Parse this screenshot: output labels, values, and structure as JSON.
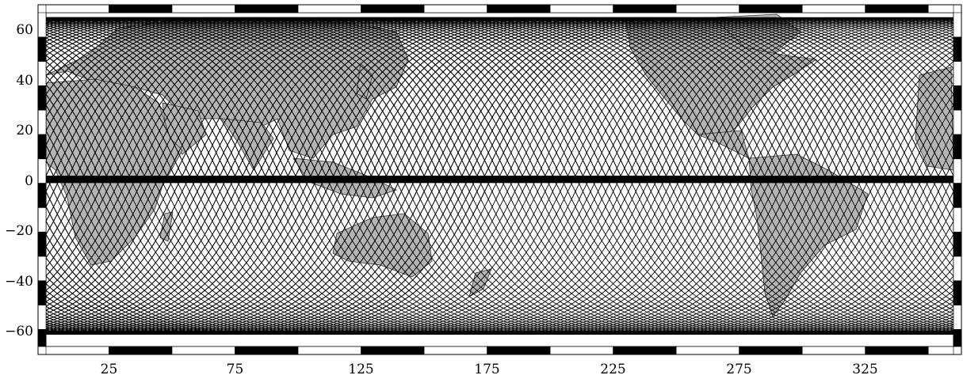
{
  "map": {
    "type": "satellite-ground-track-coverage",
    "projection": "equirectangular",
    "x_axis": {
      "range": [
        0,
        360
      ],
      "tick_labels": [
        "25",
        "75",
        "125",
        "175",
        "225",
        "275",
        "325"
      ],
      "tick_values": [
        25,
        75,
        125,
        175,
        225,
        275,
        325
      ]
    },
    "y_axis": {
      "range": [
        -70,
        67
      ],
      "tick_labels": [
        "60",
        "40",
        "20",
        "0",
        "−20",
        "−40",
        "−60"
      ],
      "tick_values": [
        60,
        40,
        20,
        0,
        -20,
        -40,
        -60
      ]
    },
    "frame": {
      "style": "alternating-black-white-bars",
      "interval_deg": 10
    },
    "tracks": {
      "inclination_deg": 65,
      "spacing_deg": 3.0,
      "color": "#000000"
    },
    "colors": {
      "land": "#b5b5b5",
      "ocean": "#ffffff",
      "track": "#000000",
      "frame": "#000000"
    }
  }
}
